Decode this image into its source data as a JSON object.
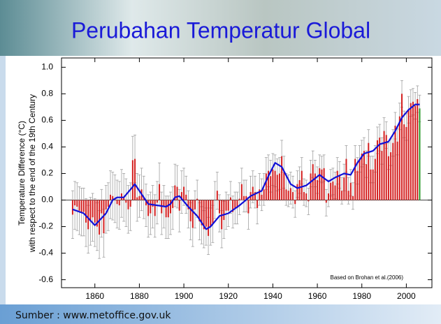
{
  "chart_data": {
    "type": "bar",
    "title": "Perubahan Temperatur Global",
    "ylabel": [
      "Temperature Difference (°C)",
      "with respect to the end of the 19th Century"
    ],
    "annotation": "Based on Brohan et al.(2006)",
    "source": "Sumber : www.metoffice.gov.uk",
    "xlim": [
      1845,
      2011.5
    ],
    "ylim": [
      -0.66,
      1.07
    ],
    "xticks": [
      1860,
      1880,
      1900,
      1920,
      1940,
      1960,
      1980,
      2000
    ],
    "yticks": [
      {
        "value": 1.0,
        "label": "1.0"
      },
      0.8,
      0.6,
      0.4,
      0.2,
      {
        "value": 0.0,
        "label": "0.0"
      },
      -0.2,
      -0.4,
      -0.6
    ],
    "x": [
      1850,
      1851,
      1852,
      1853,
      1854,
      1855,
      1856,
      1857,
      1858,
      1859,
      1860,
      1861,
      1862,
      1863,
      1864,
      1865,
      1866,
      1867,
      1868,
      1869,
      1870,
      1871,
      1872,
      1873,
      1874,
      1875,
      1876,
      1877,
      1878,
      1879,
      1880,
      1881,
      1882,
      1883,
      1884,
      1885,
      1886,
      1887,
      1888,
      1889,
      1890,
      1891,
      1892,
      1893,
      1894,
      1895,
      1896,
      1897,
      1898,
      1899,
      1900,
      1901,
      1902,
      1903,
      1904,
      1905,
      1906,
      1907,
      1908,
      1909,
      1910,
      1911,
      1912,
      1913,
      1914,
      1915,
      1916,
      1917,
      1918,
      1919,
      1920,
      1921,
      1922,
      1923,
      1924,
      1925,
      1926,
      1927,
      1928,
      1929,
      1930,
      1931,
      1932,
      1933,
      1934,
      1935,
      1936,
      1937,
      1938,
      1939,
      1940,
      1941,
      1942,
      1943,
      1944,
      1945,
      1946,
      1947,
      1948,
      1949,
      1950,
      1951,
      1952,
      1953,
      1954,
      1955,
      1956,
      1957,
      1958,
      1959,
      1960,
      1961,
      1962,
      1963,
      1964,
      1965,
      1966,
      1967,
      1968,
      1969,
      1970,
      1971,
      1972,
      1973,
      1974,
      1975,
      1976,
      1977,
      1978,
      1979,
      1980,
      1981,
      1982,
      1983,
      1984,
      1985,
      1986,
      1987,
      1988,
      1989,
      1990,
      1991,
      1992,
      1993,
      1994,
      1995,
      1996,
      1997,
      1998,
      1999,
      2000,
      2001,
      2002,
      2003,
      2004,
      2005,
      2006
    ],
    "series": [
      {
        "color": "#d42020",
        "last_color": "#2a9a2a",
        "error_color": "#a0a0a0",
        "values": [
          -0.11,
          -0.04,
          -0.05,
          -0.08,
          -0.09,
          -0.09,
          -0.17,
          -0.22,
          -0.16,
          -0.13,
          -0.17,
          -0.2,
          -0.26,
          -0.1,
          -0.25,
          -0.07,
          -0.05,
          0.04,
          0.03,
          0.01,
          -0.03,
          -0.04,
          0.05,
          0.02,
          -0.02,
          -0.07,
          -0.05,
          0.3,
          0.31,
          0.02,
          0.03,
          0.08,
          0.02,
          -0.04,
          -0.12,
          -0.1,
          -0.05,
          -0.12,
          -0.02,
          0.12,
          -0.1,
          -0.05,
          -0.13,
          -0.13,
          -0.1,
          -0.06,
          0.11,
          0.1,
          -0.08,
          0.06,
          0.1,
          0.04,
          -0.07,
          -0.16,
          -0.21,
          -0.07,
          0.01,
          -0.16,
          -0.19,
          -0.22,
          -0.2,
          -0.27,
          -0.2,
          -0.18,
          0.0,
          0.07,
          -0.1,
          -0.22,
          -0.15,
          -0.08,
          -0.08,
          0.02,
          -0.09,
          -0.06,
          -0.06,
          0.01,
          0.12,
          0.03,
          0.03,
          -0.1,
          0.06,
          0.1,
          0.06,
          -0.06,
          0.08,
          0.04,
          0.08,
          0.2,
          0.22,
          0.18,
          0.23,
          0.22,
          0.19,
          0.2,
          0.33,
          0.21,
          0.08,
          0.07,
          0.09,
          0.06,
          -0.03,
          0.12,
          0.15,
          0.22,
          0.06,
          0.05,
          -0.01,
          0.2,
          0.27,
          0.2,
          0.15,
          0.24,
          0.23,
          0.24,
          -0.02,
          0.05,
          0.13,
          0.14,
          0.11,
          0.22,
          0.19,
          0.07,
          0.17,
          0.31,
          0.07,
          0.13,
          0.03,
          0.31,
          0.22,
          0.31,
          0.35,
          0.37,
          0.27,
          0.43,
          0.23,
          0.23,
          0.31,
          0.45,
          0.47,
          0.37,
          0.52,
          0.49,
          0.33,
          0.36,
          0.43,
          0.56,
          0.44,
          0.63,
          0.8,
          0.57,
          0.55,
          0.68,
          0.73,
          0.74,
          0.71,
          0.76,
          0.69
        ],
        "errors": [
          0.18,
          0.18,
          0.18,
          0.18,
          0.18,
          0.18,
          0.18,
          0.18,
          0.18,
          0.18,
          0.18,
          0.18,
          0.18,
          0.18,
          0.18,
          0.18,
          0.18,
          0.18,
          0.18,
          0.18,
          0.18,
          0.18,
          0.18,
          0.18,
          0.18,
          0.18,
          0.18,
          0.18,
          0.18,
          0.18,
          0.16,
          0.16,
          0.16,
          0.16,
          0.16,
          0.16,
          0.16,
          0.16,
          0.16,
          0.16,
          0.16,
          0.16,
          0.16,
          0.16,
          0.16,
          0.16,
          0.16,
          0.16,
          0.16,
          0.16,
          0.14,
          0.14,
          0.14,
          0.14,
          0.14,
          0.14,
          0.14,
          0.14,
          0.14,
          0.14,
          0.14,
          0.14,
          0.14,
          0.14,
          0.14,
          0.14,
          0.14,
          0.14,
          0.14,
          0.14,
          0.12,
          0.12,
          0.12,
          0.12,
          0.12,
          0.12,
          0.12,
          0.12,
          0.12,
          0.12,
          0.12,
          0.12,
          0.12,
          0.12,
          0.12,
          0.12,
          0.12,
          0.12,
          0.12,
          0.12,
          0.12,
          0.12,
          0.12,
          0.12,
          0.12,
          0.12,
          0.12,
          0.12,
          0.12,
          0.12,
          0.1,
          0.1,
          0.1,
          0.1,
          0.1,
          0.1,
          0.1,
          0.1,
          0.1,
          0.1,
          0.1,
          0.1,
          0.1,
          0.1,
          0.1,
          0.1,
          0.1,
          0.1,
          0.1,
          0.1,
          0.1,
          0.1,
          0.1,
          0.1,
          0.1,
          0.1,
          0.1,
          0.1,
          0.1,
          0.1,
          0.1,
          0.1,
          0.1,
          0.1,
          0.1,
          0.1,
          0.1,
          0.1,
          0.1,
          0.1,
          0.1,
          0.1,
          0.1,
          0.1,
          0.1,
          0.1,
          0.1,
          0.1,
          0.1,
          0.1,
          0.1,
          0.1,
          0.1,
          0.1,
          0.1,
          0.1,
          0.1
        ]
      },
      {
        "type": "line",
        "color": "#1010d8",
        "x": [
          1850,
          1855,
          1860,
          1865,
          1868,
          1870,
          1873,
          1876,
          1878,
          1880,
          1884,
          1888,
          1892,
          1894,
          1896,
          1898,
          1902,
          1906,
          1910,
          1912,
          1916,
          1920,
          1925,
          1930,
          1935,
          1938,
          1941,
          1944,
          1948,
          1951,
          1955,
          1958,
          1961,
          1965,
          1968,
          1972,
          1975,
          1978,
          1981,
          1985,
          1988,
          1992,
          1995,
          1998,
          2001,
          2004,
          2006
        ],
        "values": [
          -0.07,
          -0.1,
          -0.19,
          -0.1,
          0.0,
          0.02,
          0.02,
          0.08,
          0.12,
          0.07,
          -0.03,
          -0.04,
          -0.05,
          -0.03,
          0.02,
          0.03,
          -0.05,
          -0.12,
          -0.22,
          -0.2,
          -0.12,
          -0.1,
          -0.04,
          0.03,
          0.07,
          0.18,
          0.28,
          0.25,
          0.12,
          0.09,
          0.11,
          0.15,
          0.19,
          0.14,
          0.17,
          0.2,
          0.19,
          0.28,
          0.35,
          0.37,
          0.42,
          0.44,
          0.52,
          0.62,
          0.68,
          0.72,
          0.72
        ]
      }
    ]
  }
}
